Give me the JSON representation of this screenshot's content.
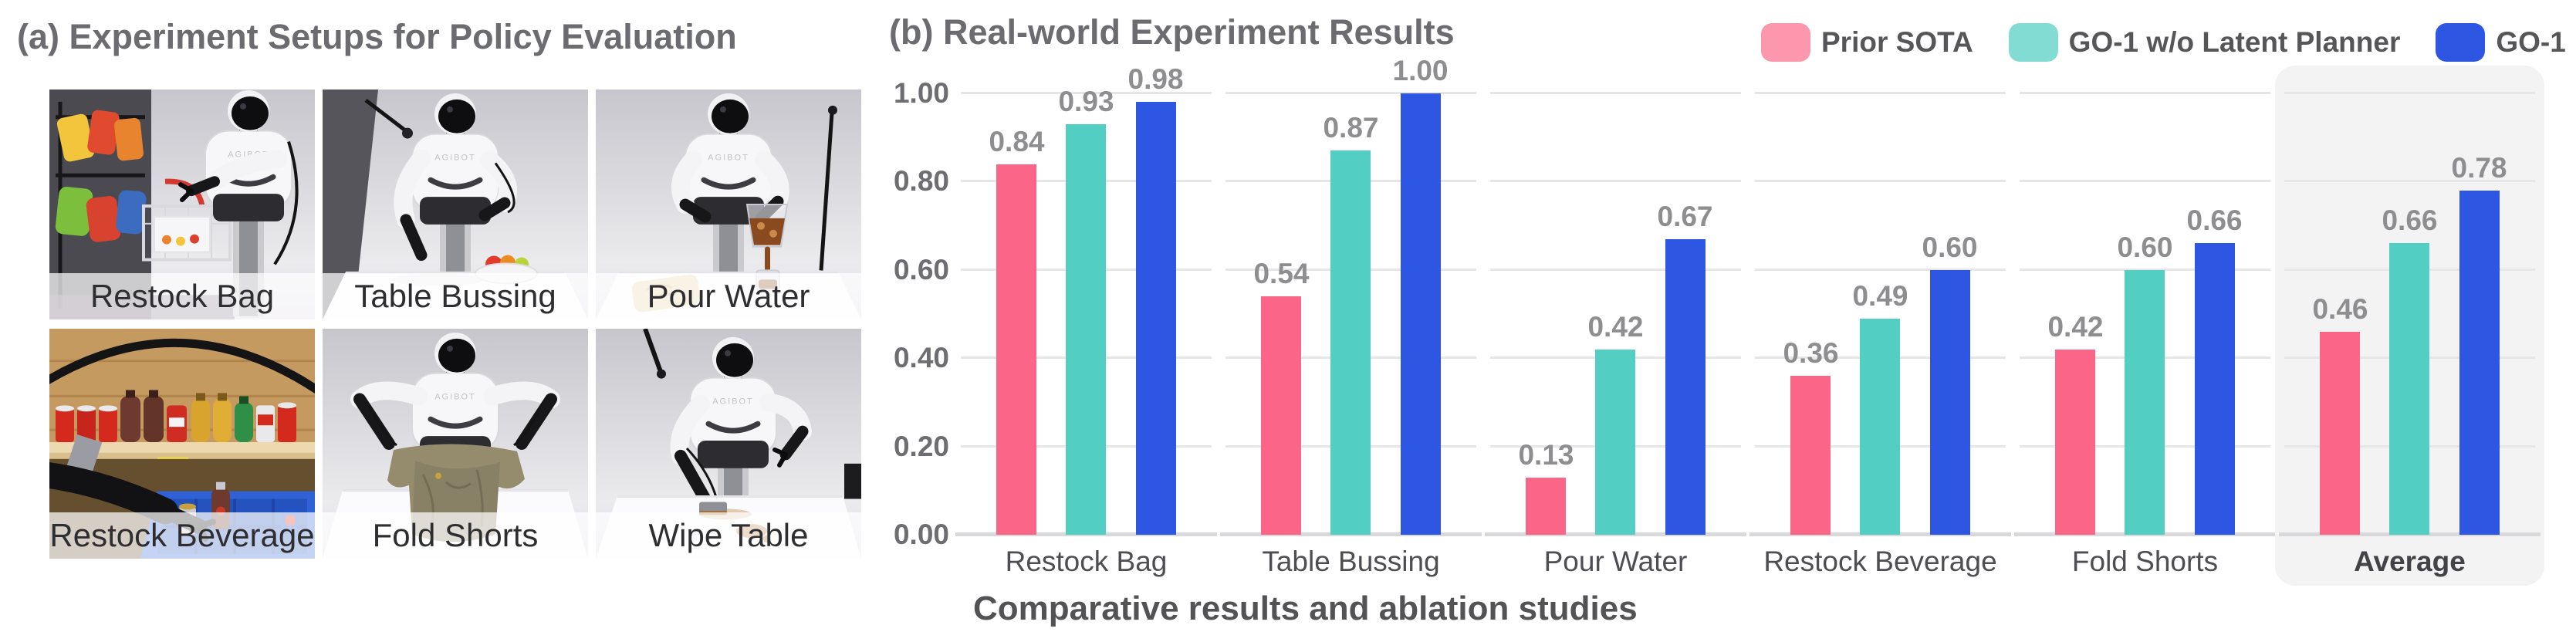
{
  "panel_a": {
    "title": "(a) Experiment Setups for Policy Evaluation",
    "robot_brand": "AGIBOT",
    "setups": {
      "items": [
        {
          "label": "Restock Bag"
        },
        {
          "label": "Table Bussing"
        },
        {
          "label": "Pour Water"
        },
        {
          "label": "Restock Beverage"
        },
        {
          "label": "Fold Shorts"
        },
        {
          "label": "Wipe Table"
        }
      ]
    }
  },
  "panel_b": {
    "title": "(b) Real-world Experiment Results",
    "caption": "Comparative results and ablation studies"
  },
  "chart_data": {
    "type": "bar",
    "title": "(b) Real-world Experiment Results",
    "categories": [
      "Restock Bag",
      "Table Bussing",
      "Pour Water",
      "Restock Beverage",
      "Fold Shorts",
      "Average"
    ],
    "series": [
      {
        "name": "Prior SOTA",
        "color": "#FA6588",
        "legend_color": "#FC97AD",
        "values": [
          0.84,
          0.54,
          0.13,
          0.36,
          0.42,
          0.46
        ]
      },
      {
        "name": "GO-1 w/o Latent Planner",
        "color": "#53CEC3",
        "legend_color": "#83DCD4",
        "values": [
          0.93,
          0.87,
          0.42,
          0.49,
          0.6,
          0.66
        ]
      },
      {
        "name": "GO-1",
        "color": "#2D57E2",
        "legend_color": "#2D57E2",
        "values": [
          0.98,
          1.0,
          0.67,
          0.6,
          0.66,
          0.78
        ]
      }
    ],
    "ylim": [
      0,
      1
    ],
    "yticks": [
      "0.00",
      "0.20",
      "0.40",
      "0.60",
      "0.80",
      "1.00"
    ],
    "grid": true,
    "value_labels": true,
    "legend_position": "top-right",
    "highlight_category": "Average",
    "grid_color": "#E6E6E8",
    "highlight_bg": "#F3F3F4"
  }
}
